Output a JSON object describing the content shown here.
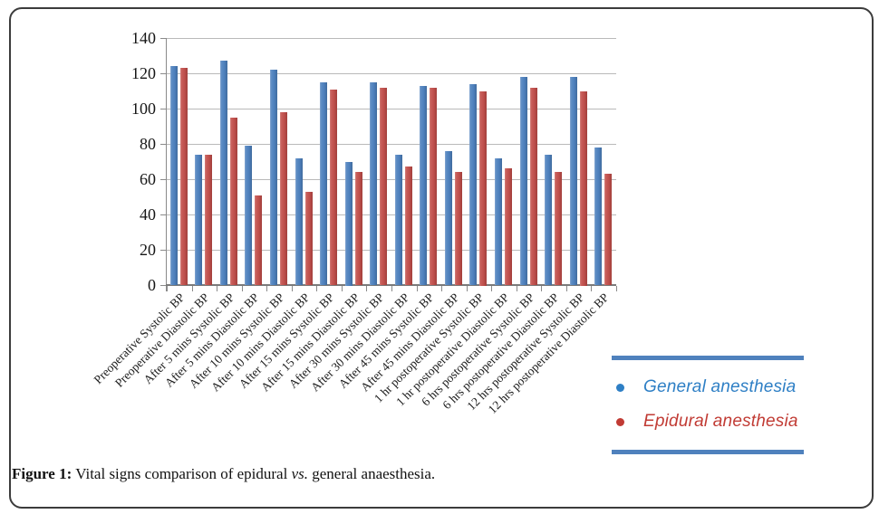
{
  "caption": {
    "prefix": "Figure 1:",
    "before_vs": "Vital signs comparison of epidural",
    "vs": "vs.",
    "after_vs": "general anaesthesia."
  },
  "legend": {
    "items": [
      {
        "label": "General anesthesia",
        "color": "#2e7fc5"
      },
      {
        "label": "Epidural anesthesia",
        "color": "#c13b34"
      }
    ],
    "rule_color": "#4f81bd"
  },
  "chart_data": {
    "type": "bar",
    "title": "",
    "xlabel": "",
    "ylabel": "",
    "ylim": [
      0,
      140
    ],
    "ytick_step": 20,
    "grid": true,
    "legend_position": "right",
    "categories": [
      "Preoperative Systolic BP",
      "Preoperative Diastolic BP",
      "After 5 mins Systolic BP",
      "After 5 mins Diastolic BP",
      "After 10 mins Systolic BP",
      "After 10 mins Diastolic BP",
      "After 15 mins Systolic BP",
      "After 15 mins Diastolic BP",
      "After 30 mins Systolic BP",
      "After 30 mins Diastolic BP",
      "After 45 mins Systolic BP",
      "After 45 mins Diastolic BP",
      "1 hr postoperative Systolic BP",
      "1 hr postoperative Diastolic BP",
      "6 hrs postoperative Systolic BP",
      "6 hrs postoperative Diastolic BP",
      "12 hrs postoperative Systolic BP",
      "12 hrs postoperative Diastolic BP"
    ],
    "series": [
      {
        "name": "General anesthesia",
        "color": "#4f81bd",
        "values": [
          124,
          74,
          127,
          79,
          122,
          72,
          115,
          70,
          115,
          74,
          113,
          76,
          114,
          72,
          118,
          74,
          118,
          78
        ]
      },
      {
        "name": "Epidural anesthesia",
        "color": "#c0504d",
        "values": [
          123,
          74,
          95,
          51,
          98,
          53,
          111,
          64,
          112,
          67,
          112,
          64,
          110,
          66,
          112,
          64,
          110,
          63
        ]
      }
    ]
  }
}
